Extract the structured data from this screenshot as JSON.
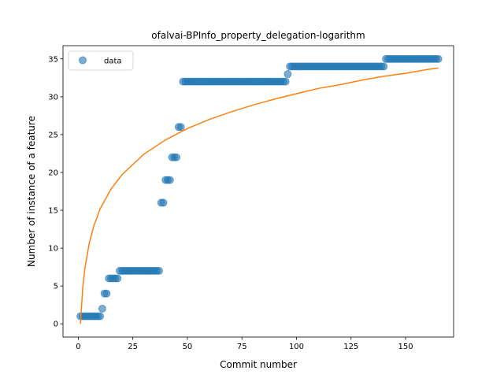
{
  "chart_data": {
    "type": "scatter",
    "title": "ofalvai-BPInfo_property_delegation-logarithm",
    "xlabel": "Commit number",
    "ylabel": "Number of instance of a feature",
    "xlim": [
      -7,
      172
    ],
    "ylim": [
      -1.75,
      36.75
    ],
    "xticks": [
      0,
      25,
      50,
      75,
      100,
      125,
      150
    ],
    "yticks": [
      0,
      5,
      10,
      15,
      20,
      25,
      30,
      35
    ],
    "legend": {
      "position": "top-left",
      "entries": [
        "data"
      ]
    },
    "colors": {
      "data": "#1f77b4",
      "fit": "#ff7f0e"
    },
    "series": [
      {
        "name": "data",
        "kind": "scatter",
        "x": [
          1,
          2,
          3,
          4,
          5,
          6,
          7,
          8,
          9,
          10,
          11,
          12,
          13,
          14,
          15,
          16,
          17,
          18,
          19,
          20,
          21,
          22,
          23,
          24,
          25,
          26,
          27,
          28,
          29,
          30,
          31,
          32,
          33,
          34,
          35,
          36,
          37,
          38,
          39,
          40,
          41,
          42,
          43,
          44,
          45,
          46,
          47,
          48,
          49,
          50,
          51,
          52,
          53,
          54,
          55,
          56,
          57,
          58,
          59,
          60,
          61,
          62,
          63,
          64,
          65,
          66,
          67,
          68,
          69,
          70,
          71,
          72,
          73,
          74,
          75,
          76,
          77,
          78,
          79,
          80,
          81,
          82,
          83,
          84,
          85,
          86,
          87,
          88,
          89,
          90,
          91,
          92,
          93,
          94,
          95,
          96,
          97,
          98,
          99,
          100,
          101,
          102,
          103,
          104,
          105,
          106,
          107,
          108,
          109,
          110,
          111,
          112,
          113,
          114,
          115,
          116,
          117,
          118,
          119,
          120,
          121,
          122,
          123,
          124,
          125,
          126,
          127,
          128,
          129,
          130,
          131,
          132,
          133,
          134,
          135,
          136,
          137,
          138,
          139,
          140,
          141,
          142,
          143,
          144,
          145,
          146,
          147,
          148,
          149,
          150,
          151,
          152,
          153,
          154,
          155,
          156,
          157,
          158,
          159,
          160,
          161,
          162,
          163,
          164,
          165
        ],
        "y": [
          1,
          1,
          1,
          1,
          1,
          1,
          1,
          1,
          1,
          1,
          2,
          4,
          4,
          6,
          6,
          6,
          6,
          6,
          7,
          7,
          7,
          7,
          7,
          7,
          7,
          7,
          7,
          7,
          7,
          7,
          7,
          7,
          7,
          7,
          7,
          7,
          7,
          16,
          16,
          19,
          19,
          19,
          22,
          22,
          22,
          26,
          26,
          32,
          32,
          32,
          32,
          32,
          32,
          32,
          32,
          32,
          32,
          32,
          32,
          32,
          32,
          32,
          32,
          32,
          32,
          32,
          32,
          32,
          32,
          32,
          32,
          32,
          32,
          32,
          32,
          32,
          32,
          32,
          32,
          32,
          32,
          32,
          32,
          32,
          32,
          32,
          32,
          32,
          32,
          32,
          32,
          32,
          32,
          32,
          32,
          33,
          34,
          34,
          34,
          34,
          34,
          34,
          34,
          34,
          34,
          34,
          34,
          34,
          34,
          34,
          34,
          34,
          34,
          34,
          34,
          34,
          34,
          34,
          34,
          34,
          34,
          34,
          34,
          34,
          34,
          34,
          34,
          34,
          34,
          34,
          34,
          34,
          34,
          34,
          34,
          34,
          34,
          34,
          34,
          34,
          35,
          35,
          35,
          35,
          35,
          35,
          35,
          35,
          35,
          35,
          35,
          35,
          35,
          35,
          35,
          35,
          35,
          35,
          35,
          35,
          35,
          35,
          35,
          35,
          35
        ]
      },
      {
        "name": "",
        "kind": "line",
        "x": [
          1,
          2,
          3,
          5,
          7,
          10,
          15,
          20,
          30,
          40,
          50,
          60,
          70,
          80,
          90,
          100,
          110,
          120,
          130,
          140,
          150,
          160,
          165
        ],
        "y": [
          0.0,
          4.6,
          7.3,
          10.6,
          12.8,
          15.2,
          17.8,
          19.7,
          22.4,
          24.3,
          25.8,
          27.0,
          28.0,
          28.9,
          29.7,
          30.4,
          31.1,
          31.6,
          32.2,
          32.7,
          33.1,
          33.6,
          33.8
        ]
      }
    ]
  }
}
